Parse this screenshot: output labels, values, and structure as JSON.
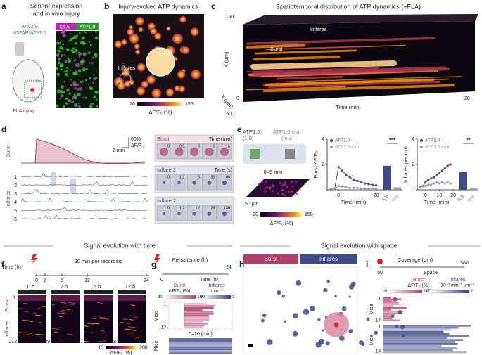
{
  "a": {
    "label": "a",
    "title_1": "Sensor expression",
    "title_2": "and in vivo injury",
    "virus": "AAV2/9",
    "construct": "sGFAP-ATP1.0",
    "gfap": "GFAP",
    "atp": "ATP1.0",
    "injury": "FLA injury"
  },
  "b": {
    "label": "b",
    "title": "Injury-evoked ATP dynamics",
    "burst": "Burst",
    "inflares": "Inflares",
    "cbar_min": "20",
    "cbar_max": "150",
    "cbar_label": "ΔF/F₀ (%)"
  },
  "c": {
    "label": "c",
    "title": "Spatiotemporal distribution of ATP dynamics (+FLA)",
    "x_axis": "X (μm)",
    "y_axis": "Y (μm)",
    "x_max": "500",
    "y_max": "500",
    "y_zero": "0",
    "t_axis": "Time (min)",
    "t_max": "20",
    "inflares": "Inflares",
    "burst": "Burst"
  },
  "d": {
    "label": "d",
    "scale_y": "60%",
    "scale_y_unit": "ΔF/F₀",
    "scale_x": "2 min",
    "burst": "Burst",
    "inflares": "Inflares",
    "traces": [
      "1",
      "2",
      "3",
      "4",
      "5",
      "6"
    ],
    "frames": [
      {
        "title": "Burst",
        "unit": "Time (min)",
        "times": [
          "0",
          "0.5",
          "3",
          "5",
          "15"
        ]
      },
      {
        "title": "Inflare 1",
        "unit": "Time (s)",
        "times": [
          "0",
          "1.2",
          "6",
          "30",
          "90"
        ]
      },
      {
        "title": "Inflare 2",
        "times": [
          "0",
          "1.2",
          "12",
          "28",
          "130"
        ]
      }
    ]
  },
  "e": {
    "label": "e",
    "sensor": "ATP1.0",
    "sensor_short": "(1.0)",
    "mut": "ATP1.0-mut",
    "mut_short": "(mut)",
    "window": "0–5 min",
    "scale": "50 μm",
    "cbar_min": "20",
    "cbar_max": "150",
    "cbar_label": "ΔF/F₀ (%)",
    "charts": [
      {
        "type": "line",
        "ylabel": "Burst ΔF/F₀",
        "xlabel": "Time (min)",
        "x": [
          -4,
          -2,
          0,
          2,
          4,
          6,
          8,
          10,
          12,
          14,
          16,
          18,
          20
        ],
        "series": [
          {
            "name": "ATP1.0",
            "color": "#3e4a8c",
            "values": [
              0.1,
              0.1,
              1.8,
              1.5,
              1.2,
              1.0,
              0.8,
              0.7,
              0.6,
              0.5,
              0.45,
              0.4,
              0.35
            ]
          },
          {
            "name": "ATP1.0-mut",
            "color": "#9a9a9a",
            "values": [
              0.1,
              0.1,
              0.3,
              0.25,
              0.2,
              0.15,
              0.15,
              0.15,
              0.1,
              0.1,
              0.1,
              0.1,
              0.1
            ]
          }
        ],
        "xlim": [
          -6,
          22
        ],
        "xticks": [
          0,
          20
        ],
        "ylim": [
          0,
          4
        ],
        "yticks": [
          0,
          2,
          4
        ],
        "bars": {
          "categories": [
            "1.0",
            "Mut"
          ],
          "values": [
            1.9,
            0.2
          ]
        },
        "significance": "***"
      },
      {
        "type": "line",
        "ylabel": "Inflares per min",
        "xlabel": "Time (min)",
        "x": [
          -4,
          -2,
          0,
          2,
          4,
          6,
          8,
          10,
          12,
          14,
          16,
          18
        ],
        "series": [
          {
            "name": "ATP1.0",
            "color": "#3e4a8c",
            "values": [
              0.2,
              0.3,
              0.6,
              0.8,
              0.9,
              1.0,
              1.2,
              1.3,
              1.5,
              1.7,
              1.9,
              2.0
            ]
          },
          {
            "name": "ATP1.0-mut",
            "color": "#9a9a9a",
            "values": [
              0.2,
              0.3,
              0.3,
              0.4,
              0.4,
              0.5,
              0.6,
              0.5,
              0.6,
              0.5,
              0.6,
              0.5
            ]
          }
        ],
        "xlim": [
          -6,
          22
        ],
        "xticks": [
          0,
          10,
          20
        ],
        "ylim": [
          0,
          4
        ],
        "yticks": [
          0,
          2,
          4
        ],
        "bars": {
          "categories": [
            "1.0",
            "Mut"
          ],
          "values": [
            1.4,
            0.1
          ]
        },
        "significance": "**"
      }
    ]
  },
  "f": {
    "label": "f",
    "section": "Signal evolution with time",
    "time_axis": "Time (h)",
    "time_ticks": [
      "0",
      "2",
      "6",
      "12",
      "24"
    ],
    "per_recording": "20 min per recording",
    "recordings": [
      {
        "title": "0 h",
        "count": "212"
      },
      {
        "title": "2 h",
        "count": "139"
      },
      {
        "title": "6 h",
        "count": "101"
      },
      {
        "title": "12 h",
        "count": "78"
      }
    ],
    "burst": "Burst",
    "inflares": "Inflares",
    "row_start": "1",
    "cbar_min": "10",
    "cbar_max": "200",
    "cbar_label": "ΔF/F₀ (%)"
  },
  "g": {
    "label": "g",
    "persistence": "Persistence (h)",
    "t0": "0",
    "t1": "24",
    "time_axis": "Time (h)",
    "burst_label": "Burst",
    "burst_unit": "ΔF/F₀ (%)",
    "inflares_label": "Inflares",
    "inflares_unit": "min⁻¹",
    "burst_min": "10",
    "burst_max": "100",
    "inflares_min": "0",
    "inflares_max": "3",
    "mice": "Mice",
    "mice_start": "1",
    "mice_end": "13",
    "window": "0–20 (min)"
  },
  "h": {
    "label": "h",
    "section": "Signal evolution with space",
    "burst": "Burst",
    "inflares": "Inflares"
  },
  "i": {
    "label": "i",
    "coverage": "Coverage (μm)",
    "c0": "50",
    "c1": "300",
    "space": "Space",
    "burst_label": "Burst",
    "burst_unit": "ΔF/F₀ (%)",
    "inflares_label": "Inflares",
    "inflares_unit": "10⁻³ min⁻¹ μm⁻²",
    "burst_min": "10",
    "burst_max": "100",
    "inflares_min": "0",
    "inflares_max": "1",
    "mice": "Mice",
    "mice_start": "1",
    "mice_end": "14"
  }
}
